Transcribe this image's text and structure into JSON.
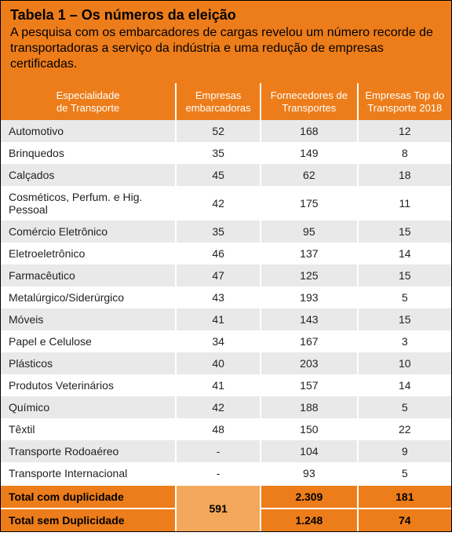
{
  "colors": {
    "headerBg": "#ed7d1a",
    "tableHeadBg": "#ed7d1a",
    "footBg": "#ed7d1a",
    "footMergedBg": "#f3a85b",
    "stripeOdd": "#e9e9e9",
    "stripeEven": "#ffffff"
  },
  "header": {
    "title": "Tabela 1 – Os números da eleição",
    "subtitle": "A pesquisa com os embarcadores de cargas revelou um número recorde de transportadoras a serviço da indústria e uma redução de empresas certificadas."
  },
  "table": {
    "columns": [
      "Especialidade\nde Transporte",
      "Empresas\nembarcadoras",
      "Fornecedores de\nTransportes",
      "Empresas Top do\nTransporte 2018"
    ],
    "rows": [
      [
        "Automotivo",
        "52",
        "168",
        "12"
      ],
      [
        "Brinquedos",
        "35",
        "149",
        "8"
      ],
      [
        "Calçados",
        "45",
        "62",
        "18"
      ],
      [
        "Cosméticos, Perfum. e Hig. Pessoal",
        "42",
        "175",
        "11"
      ],
      [
        "Comércio Eletrônico",
        "35",
        "95",
        "15"
      ],
      [
        "Eletroeletrônico",
        "46",
        "137",
        "14"
      ],
      [
        "Farmacêutico",
        "47",
        "125",
        "15"
      ],
      [
        "Metalúrgico/Siderúrgico",
        "43",
        "193",
        "5"
      ],
      [
        "Móveis",
        "41",
        "143",
        "15"
      ],
      [
        "Papel e Celulose",
        "34",
        "167",
        "3"
      ],
      [
        "Plásticos",
        "40",
        "203",
        "10"
      ],
      [
        "Produtos Veterinários",
        "41",
        "157",
        "14"
      ],
      [
        "Químico",
        "42",
        "188",
        "5"
      ],
      [
        "Têxtil",
        "48",
        "150",
        "22"
      ],
      [
        "Transporte Rodoaéreo",
        "-",
        "104",
        "9"
      ],
      [
        "Transporte Internacional",
        "-",
        "93",
        "5"
      ]
    ],
    "footer": {
      "row1": {
        "label": "Total com duplicidade",
        "merged": "591",
        "c": "2.309",
        "d": "181"
      },
      "row2": {
        "label": "Total sem Duplicidade",
        "c": "1.248",
        "d": "74"
      }
    }
  }
}
